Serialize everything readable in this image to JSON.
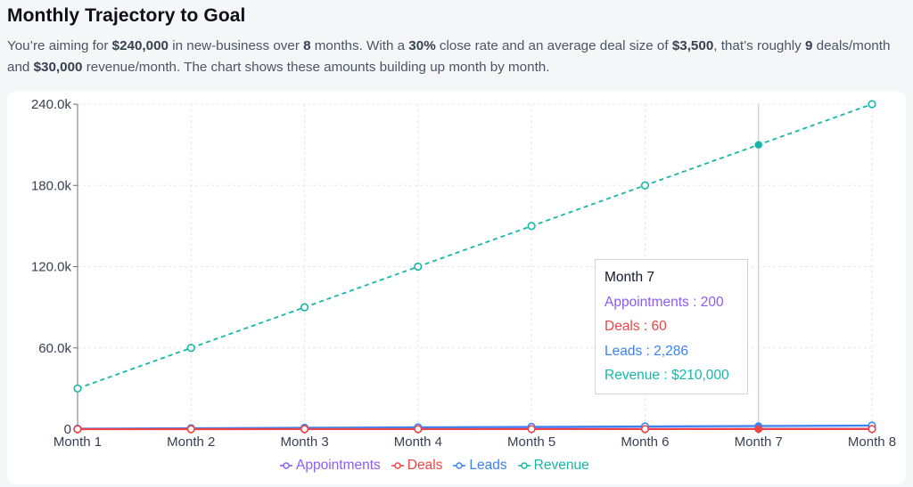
{
  "header": {
    "title": "Monthly Trajectory to Goal",
    "summary": [
      {
        "t": "You’re aiming for ",
        "b": false
      },
      {
        "t": "$240,000",
        "b": true
      },
      {
        "t": " in new-business over ",
        "b": false
      },
      {
        "t": "8",
        "b": true
      },
      {
        "t": " months. With a ",
        "b": false
      },
      {
        "t": "30%",
        "b": true
      },
      {
        "t": " close rate and an average deal size of ",
        "b": false
      },
      {
        "t": "$3,500",
        "b": true
      },
      {
        "t": ", that’s roughly ",
        "b": false
      },
      {
        "t": "9",
        "b": true
      },
      {
        "t": " deals/month and ",
        "b": false
      },
      {
        "t": "$30,000",
        "b": true
      },
      {
        "t": " revenue/month. The chart shows these amounts building up month by month.",
        "b": false
      }
    ]
  },
  "chart_data": {
    "type": "line",
    "title": "",
    "xlabel": "",
    "ylabel": "",
    "categories": [
      "Month 1",
      "Month 2",
      "Month 3",
      "Month 4",
      "Month 5",
      "Month 6",
      "Month 7",
      "Month 8"
    ],
    "ylim": [
      0,
      240000
    ],
    "yticks": [
      0,
      60000,
      120000,
      180000,
      240000
    ],
    "ytick_labels": [
      "0",
      "60.0k",
      "120.0k",
      "180.0k",
      "240.0k"
    ],
    "grid": true,
    "legend_position": "bottom",
    "series": [
      {
        "name": "Appointments",
        "color": "#8b5cf6",
        "dashed": false,
        "values": [
          29,
          57,
          86,
          114,
          143,
          171,
          200,
          229
        ]
      },
      {
        "name": "Deals",
        "color": "#ef4444",
        "dashed": false,
        "values": [
          9,
          17,
          26,
          34,
          43,
          51,
          60,
          69
        ]
      },
      {
        "name": "Leads",
        "color": "#3b82f6",
        "dashed": false,
        "values": [
          327,
          653,
          980,
          1306,
          1633,
          1959,
          2286,
          2612
        ]
      },
      {
        "name": "Revenue",
        "color": "#14b8a6",
        "dashed": true,
        "values": [
          30000,
          60000,
          90000,
          120000,
          150000,
          180000,
          210000,
          240000
        ]
      }
    ],
    "tooltip": {
      "category": "Month 7",
      "rows": [
        {
          "series": "Appointments",
          "text": "Appointments : 200",
          "color": "#8b5cf6"
        },
        {
          "series": "Deals",
          "text": "Deals : 60",
          "color": "#ef4444"
        },
        {
          "series": "Leads",
          "text": "Leads : 2,286",
          "color": "#3b82f6"
        },
        {
          "series": "Revenue",
          "text": "Revenue : $210,000",
          "color": "#14b8a6"
        }
      ]
    },
    "active_index": 6
  }
}
